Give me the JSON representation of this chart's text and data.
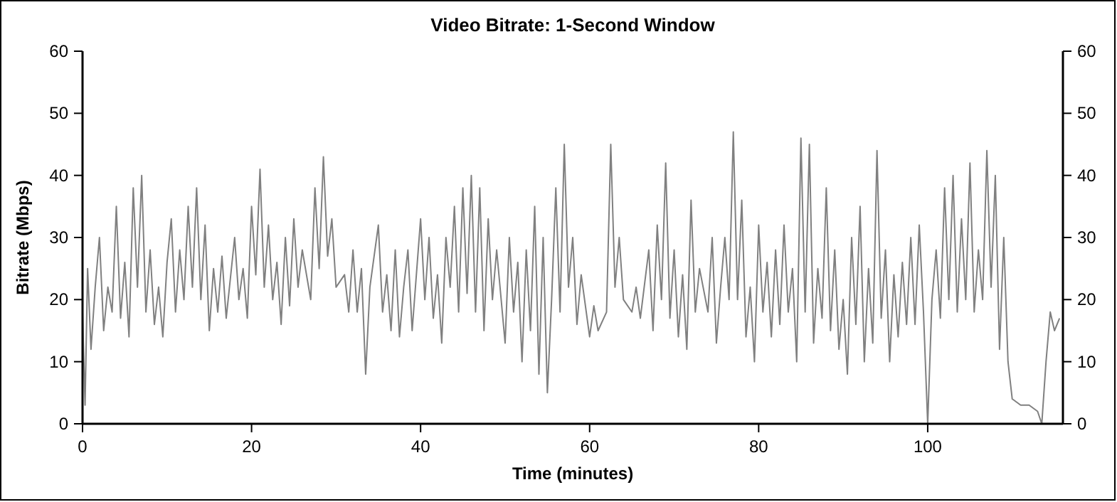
{
  "chart_data": {
    "type": "line",
    "title": "Video Bitrate: 1-Second Window",
    "xlabel": "Time (minutes)",
    "ylabel": "Bitrate (Mbps)",
    "xlim": [
      0,
      116
    ],
    "xticks": [
      0,
      20,
      40,
      60,
      80,
      100
    ],
    "ylim": [
      0,
      60
    ],
    "yticks": [
      0,
      10,
      20,
      30,
      40,
      50,
      60
    ],
    "y2lim": [
      0,
      60
    ],
    "y2ticks": [
      0,
      10,
      20,
      30,
      40,
      50,
      60
    ],
    "grid": false,
    "line_style": "solid",
    "series": [
      {
        "color": "#808080",
        "x": [
          0,
          0.3,
          0.6,
          1,
          1.5,
          2,
          2.5,
          3,
          3.5,
          4,
          4.5,
          5,
          5.5,
          6,
          6.5,
          7,
          7.5,
          8,
          8.5,
          9,
          9.5,
          10,
          10.5,
          11,
          11.5,
          12,
          12.5,
          13,
          13.5,
          14,
          14.5,
          15,
          15.5,
          16,
          16.5,
          17,
          18,
          18.5,
          19,
          19.5,
          20,
          20.5,
          21,
          21.5,
          22,
          22.5,
          23,
          23.5,
          24,
          24.5,
          25,
          25.5,
          26,
          27,
          27.5,
          28,
          28.5,
          29,
          29.5,
          30,
          31,
          31.5,
          32,
          32.5,
          33,
          33.5,
          34,
          35,
          35.5,
          36,
          36.5,
          37,
          37.5,
          38,
          38.5,
          39,
          40,
          40.5,
          41,
          41.5,
          42,
          42.5,
          43,
          43.5,
          44,
          44.5,
          45,
          45.5,
          46,
          46.5,
          47,
          47.5,
          48,
          48.5,
          49,
          50,
          50.5,
          51,
          51.5,
          52,
          52.5,
          53,
          53.5,
          54,
          54.5,
          55,
          55.5,
          56,
          56.5,
          57,
          57.5,
          58,
          58.5,
          59,
          60,
          60.5,
          61,
          62,
          62.5,
          63,
          63.5,
          64,
          65,
          65.5,
          66,
          67,
          67.5,
          68,
          68.5,
          69,
          69.5,
          70,
          70.5,
          71,
          71.5,
          72,
          72.5,
          73,
          74,
          74.5,
          75,
          75.5,
          76,
          76.5,
          77,
          77.5,
          78,
          78.5,
          79,
          79.5,
          80,
          80.5,
          81,
          81.5,
          82,
          82.5,
          83,
          83.5,
          84,
          84.5,
          85,
          85.5,
          86,
          86.5,
          87,
          87.5,
          88,
          88.5,
          89,
          89.5,
          90,
          90.5,
          91,
          91.5,
          92,
          92.5,
          93,
          93.5,
          94,
          94.5,
          95,
          95.5,
          96,
          96.5,
          97,
          97.5,
          98,
          98.5,
          99,
          99.5,
          100,
          100.5,
          101,
          101.5,
          102,
          102.5,
          103,
          103.5,
          104,
          104.5,
          105,
          105.5,
          106,
          106.5,
          107,
          107.5,
          108,
          108.5,
          109,
          109.5,
          110,
          111,
          112,
          113,
          113.5,
          114,
          114.5,
          115,
          115.6
        ],
        "values": [
          18,
          3,
          25,
          12,
          22,
          30,
          15,
          22,
          18,
          35,
          17,
          26,
          14,
          38,
          22,
          40,
          18,
          28,
          16,
          22,
          14,
          26,
          33,
          18,
          28,
          20,
          35,
          22,
          38,
          20,
          32,
          15,
          25,
          18,
          27,
          17,
          30,
          20,
          25,
          17,
          35,
          24,
          41,
          22,
          32,
          20,
          26,
          16,
          30,
          19,
          33,
          22,
          28,
          20,
          38,
          25,
          43,
          27,
          33,
          22,
          24,
          18,
          28,
          18,
          25,
          8,
          22,
          32,
          18,
          24,
          15,
          28,
          14,
          22,
          28,
          15,
          33,
          20,
          30,
          17,
          24,
          13,
          30,
          22,
          35,
          18,
          38,
          21,
          40,
          18,
          38,
          15,
          33,
          20,
          28,
          13,
          30,
          18,
          26,
          10,
          28,
          15,
          35,
          8,
          30,
          5,
          20,
          38,
          18,
          45,
          22,
          30,
          16,
          24,
          14,
          19,
          15,
          18,
          45,
          22,
          30,
          20,
          18,
          22,
          17,
          28,
          15,
          32,
          20,
          42,
          17,
          28,
          14,
          24,
          12,
          36,
          18,
          25,
          18,
          30,
          13,
          22,
          30,
          20,
          47,
          20,
          36,
          14,
          22,
          10,
          32,
          18,
          26,
          14,
          28,
          16,
          32,
          18,
          25,
          10,
          46,
          18,
          45,
          13,
          25,
          17,
          38,
          15,
          28,
          12,
          20,
          8,
          30,
          16,
          35,
          10,
          25,
          13,
          44,
          17,
          28,
          10,
          24,
          14,
          26,
          16,
          30,
          16,
          32,
          18,
          0,
          20,
          28,
          17,
          38,
          20,
          40,
          18,
          33,
          20,
          42,
          18,
          28,
          20,
          44,
          22,
          40,
          12,
          30,
          10,
          4,
          3,
          3,
          2,
          0,
          10,
          18,
          15,
          17
        ]
      }
    ]
  }
}
